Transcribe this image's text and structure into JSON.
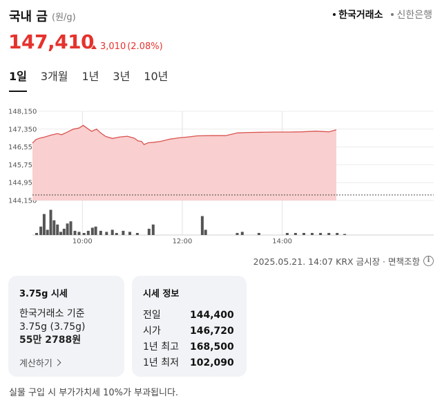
{
  "header": {
    "title": "국내 금",
    "unit": "(원/g)",
    "sources": [
      {
        "label": "한국거래소",
        "active": true
      },
      {
        "label": "신한은행",
        "active": false
      }
    ]
  },
  "price": {
    "current": "147,410",
    "change": "3,010",
    "change_pct": "(2.08%)",
    "direction": "up",
    "color": "#e5322d"
  },
  "period_tabs": [
    "1일",
    "3개월",
    "1년",
    "3년",
    "10년"
  ],
  "active_period": "1일",
  "chart_data": {
    "type": "area",
    "y_ticks": [
      "148,150",
      "147,350",
      "146,550",
      "145,750",
      "144,950",
      "144,150"
    ],
    "ylim": [
      144150,
      148150
    ],
    "x_ticks": [
      "10:00",
      "12:00",
      "14:00"
    ],
    "x_range_minutes": [
      540,
      905
    ],
    "reference_value": 144400,
    "line_color": "#d9534f",
    "fill_color": "#f9cfcf",
    "series": [
      {
        "values": [
          [
            540,
            146720
          ],
          [
            544,
            146880
          ],
          [
            549,
            146950
          ],
          [
            555,
            147000
          ],
          [
            562,
            147080
          ],
          [
            570,
            147150
          ],
          [
            575,
            147100
          ],
          [
            581,
            147200
          ],
          [
            589,
            147350
          ],
          [
            596,
            147400
          ],
          [
            601,
            147520
          ],
          [
            606,
            147380
          ],
          [
            611,
            147250
          ],
          [
            617,
            147350
          ],
          [
            622,
            147180
          ],
          [
            628,
            147020
          ],
          [
            636,
            146930
          ],
          [
            645,
            147000
          ],
          [
            654,
            147030
          ],
          [
            662,
            146950
          ],
          [
            667,
            146820
          ],
          [
            671,
            146800
          ],
          [
            674,
            146660
          ],
          [
            679,
            146740
          ],
          [
            686,
            146760
          ],
          [
            694,
            146800
          ],
          [
            705,
            146900
          ],
          [
            716,
            146960
          ],
          [
            727,
            147000
          ],
          [
            738,
            147050
          ],
          [
            755,
            147060
          ],
          [
            772,
            147060
          ],
          [
            786,
            147180
          ],
          [
            800,
            147200
          ],
          [
            816,
            147210
          ],
          [
            832,
            147220
          ],
          [
            848,
            147220
          ],
          [
            864,
            147230
          ],
          [
            880,
            147260
          ],
          [
            896,
            147230
          ],
          [
            905,
            147320
          ]
        ]
      }
    ],
    "volume": {
      "values": [
        [
          545,
          2
        ],
        [
          550,
          8
        ],
        [
          554,
          20
        ],
        [
          558,
          5
        ],
        [
          562,
          24
        ],
        [
          566,
          14
        ],
        [
          570,
          10
        ],
        [
          574,
          3
        ],
        [
          578,
          6
        ],
        [
          582,
          11
        ],
        [
          586,
          13
        ],
        [
          591,
          4
        ],
        [
          596,
          3
        ],
        [
          602,
          2
        ],
        [
          607,
          4
        ],
        [
          612,
          7
        ],
        [
          616,
          8
        ],
        [
          622,
          4
        ],
        [
          629,
          3
        ],
        [
          636,
          5
        ],
        [
          641,
          2
        ],
        [
          649,
          4
        ],
        [
          657,
          3
        ],
        [
          666,
          2
        ],
        [
          680,
          6
        ],
        [
          685,
          10
        ],
        [
          744,
          18
        ],
        [
          748,
          5
        ],
        [
          786,
          2
        ],
        [
          792,
          3
        ],
        [
          812,
          2
        ],
        [
          846,
          2
        ],
        [
          856,
          2
        ],
        [
          866,
          2
        ],
        [
          876,
          2
        ],
        [
          886,
          2
        ],
        [
          896,
          2
        ],
        [
          906,
          2
        ],
        [
          915,
          1
        ]
      ]
    }
  },
  "footnote": {
    "text": "2025.05.21. 14:07 KRX 금시장 · 면책조항",
    "info_icon": "info-icon"
  },
  "card_quote": {
    "title": "3.75g 시세",
    "line1": "한국거래소 기준",
    "line2": "3.75g (3.75g)",
    "line3": "55만 2788원",
    "calc_label": "계산하기"
  },
  "card_info": {
    "title": "시세 정보",
    "rows": [
      {
        "label": "전일",
        "value": "144,400"
      },
      {
        "label": "시가",
        "value": "146,720"
      },
      {
        "label": "1년 최고",
        "value": "168,500"
      },
      {
        "label": "1년 최저",
        "value": "102,090"
      }
    ]
  },
  "bottom_note": "실물 구입 시 부가가치세 10%가 부과됩니다."
}
